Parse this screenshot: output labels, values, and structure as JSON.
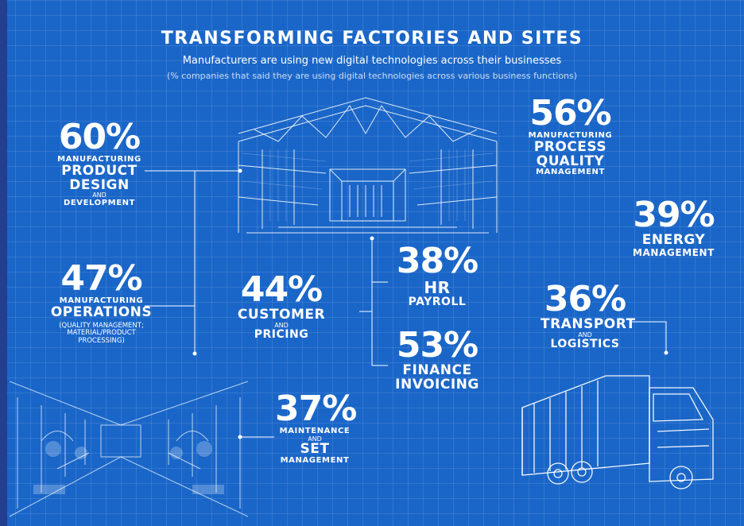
{
  "header": {
    "title": "TRANSFORMING FACTORIES AND SITES",
    "subtitle": "Manufacturers are using new digital technologies across their businesses",
    "note": "(% companies that said they are using digital technologies across various business functions)"
  },
  "stats": {
    "product_design": {
      "pct": "60%",
      "l1": "MANUFACTURING",
      "l2": "PRODUCT",
      "l3": "DESIGN",
      "l4": "AND",
      "l5": "DEVELOPMENT"
    },
    "process_quality": {
      "pct": "56%",
      "l1": "MANUFACTURING",
      "l2": "PROCESS",
      "l3": "QUALITY",
      "l4": "MANAGEMENT"
    },
    "energy": {
      "pct": "39%",
      "l1": "ENERGY",
      "l2": "MANAGEMENT"
    },
    "operations": {
      "pct": "47%",
      "l1": "MANUFACTURING",
      "l2": "OPERATIONS",
      "l3": "(QUALITY MANAGEMENT;",
      "l4": "MATERIAL/PRODUCT",
      "l5": "PROCESSING)"
    },
    "customer": {
      "pct": "44%",
      "l1": "CUSTOMER",
      "l2": "AND",
      "l3": "PRICING"
    },
    "hr": {
      "pct": "38%",
      "l1": "HR",
      "l2": "PAYROLL"
    },
    "finance": {
      "pct": "53%",
      "l1": "FINANCE",
      "l2": "INVOICING"
    },
    "transport": {
      "pct": "36%",
      "l1": "TRANSPORT",
      "l2": "AND",
      "l3": "LOGISTICS"
    },
    "maintenance": {
      "pct": "37%",
      "l1": "MAINTENANCE",
      "l2": "AND",
      "l3": "SET",
      "l4": "MANAGEMENT"
    }
  },
  "colors": {
    "background": "#1a66c8",
    "text": "#ffffff",
    "sidebar": "#243f8f"
  }
}
